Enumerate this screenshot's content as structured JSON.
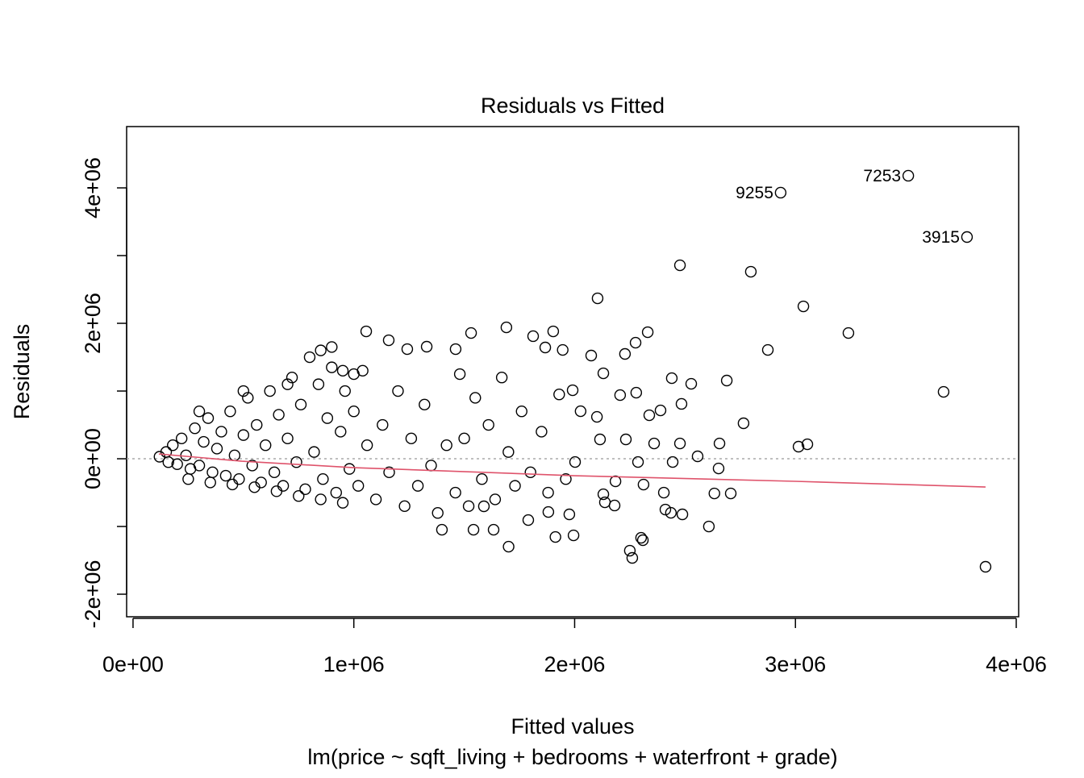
{
  "chart_data": {
    "type": "scatter",
    "title": "Residuals vs Fitted",
    "x_label": "Fitted values",
    "subtitle": "lm(price ~ sqft_living + bedrooms + waterfront + grade)",
    "y_label": "Residuals",
    "xlim": [
      -29000,
      4011000
    ],
    "ylim": [
      -2333000,
      4905000
    ],
    "xticks": [
      {
        "value": 0,
        "label": "0e+00"
      },
      {
        "value": 1000000,
        "label": "1e+06"
      },
      {
        "value": 2000000,
        "label": "2e+06"
      },
      {
        "value": 3000000,
        "label": "3e+06"
      },
      {
        "value": 4000000,
        "label": "4e+06"
      }
    ],
    "yticks": [
      {
        "value": -2000000,
        "label": "-2e+06"
      },
      {
        "value": 0,
        "label": "0e+00"
      },
      {
        "value": 2000000,
        "label": "2e+06"
      },
      {
        "value": 4000000,
        "label": "4e+06"
      }
    ],
    "y_unlabeled_ticks": [
      -1000000,
      1000000,
      3000000
    ],
    "reference_line": 0,
    "point_color": "#000000",
    "x": [
      120000,
      150000,
      160000,
      180000,
      200000,
      220000,
      240000,
      260000,
      280000,
      300000,
      320000,
      340000,
      360000,
      380000,
      400000,
      420000,
      440000,
      460000,
      480000,
      500000,
      520000,
      540000,
      560000,
      580000,
      600000,
      620000,
      640000,
      660000,
      680000,
      700000,
      720000,
      740000,
      760000,
      780000,
      800000,
      820000,
      840000,
      860000,
      880000,
      900000,
      920000,
      940000,
      960000,
      980000,
      1000000,
      1020000,
      1040000,
      1060000,
      1100000,
      1130000,
      1160000,
      1200000,
      1230000,
      1260000,
      1290000,
      1320000,
      1350000,
      1380000,
      1420000,
      1460000,
      1480000,
      1500000,
      1520000,
      1550000,
      1580000,
      1610000,
      1640000,
      1670000,
      1700000,
      1730000,
      1760000,
      1800000,
      1850000,
      1880000,
      1930000,
      1960000,
      250000,
      350000,
      450000,
      550000,
      650000,
      750000,
      850000,
      950000,
      300000,
      500000,
      700000,
      850000,
      900000,
      950000,
      1000000,
      2477000,
      2798000,
      2104000,
      3036000,
      3240000,
      2875000,
      2331000,
      3671000,
      2689000,
      2765000,
      3014000,
      3054000,
      2656000,
      2652000,
      2633000,
      2707000,
      2608000,
      3861000,
      2261000,
      2250000,
      2301000,
      2309000,
      2488000,
      2436000,
      2411000,
      2404000,
      2312000,
      2557000,
      2477000,
      2444000,
      2440000,
      2528000,
      2484000,
      2389000,
      2338000,
      2360000,
      2279000,
      2228000,
      2276000,
      2206000,
      2130000,
      2101000,
      2075000,
      2115000,
      2130000,
      2137000,
      2181000,
      2185000,
      2232000,
      2287000,
      2002000,
      2027000,
      1991000,
      1903000,
      1946000,
      1867000,
      1812000,
      1691000,
      1531000,
      1461000,
      1056000,
      1158000,
      1330000,
      1242000,
      1701000,
      1913000,
      1995000,
      1633000,
      1542000,
      1399000,
      1976000,
      1790000,
      1881000,
      1589000
    ],
    "y": [
      30000,
      100000,
      -50000,
      200000,
      -80000,
      300000,
      50000,
      -150000,
      450000,
      -100000,
      250000,
      600000,
      -200000,
      150000,
      400000,
      -250000,
      700000,
      50000,
      -300000,
      350000,
      900000,
      -100000,
      500000,
      -350000,
      200000,
      1000000,
      -200000,
      650000,
      -400000,
      300000,
      1200000,
      -50000,
      800000,
      -450000,
      1500000,
      100000,
      1100000,
      -300000,
      600000,
      1350000,
      -500000,
      400000,
      1000000,
      -150000,
      700000,
      -400000,
      1300000,
      200000,
      -600000,
      500000,
      -200000,
      1000000,
      -700000,
      300000,
      -400000,
      800000,
      -100000,
      -800000,
      200000,
      -500000,
      1250000,
      300000,
      -700000,
      900000,
      -300000,
      500000,
      -600000,
      1200000,
      100000,
      -400000,
      700000,
      -200000,
      400000,
      -500000,
      950000,
      -300000,
      -300000,
      -350000,
      -380000,
      -420000,
      -480000,
      -550000,
      -600000,
      -650000,
      700000,
      1000000,
      1100000,
      1600000,
      1650000,
      1300000,
      1250000,
      2857000,
      2762000,
      2369000,
      2250000,
      1857000,
      1607000,
      1869000,
      988000,
      1155000,
      524000,
      179000,
      214000,
      226000,
      -143000,
      -512000,
      -512000,
      -1000000,
      -1595000,
      -1464000,
      -1357000,
      -1167000,
      -1202000,
      -821000,
      -798000,
      -750000,
      -500000,
      -381000,
      36000,
      226000,
      -48000,
      1190000,
      1107000,
      810000,
      714000,
      643000,
      226000,
      976000,
      1548000,
      1714000,
      940000,
      1262000,
      619000,
      1524000,
      286000,
      -524000,
      -643000,
      -690000,
      -333000,
      286000,
      -48000,
      -48000,
      702000,
      1012000,
      1881000,
      1607000,
      1643000,
      1810000,
      1940000,
      1857000,
      1619000,
      1881000,
      1750000,
      1655000,
      1619000,
      -1298000,
      -1155000,
      -1131000,
      -1048000,
      -1048000,
      -1048000,
      -821000,
      -905000,
      -786000,
      -702000
    ],
    "labeled_points": {
      "x": [
        2933000,
        3511000,
        3777000
      ],
      "y": [
        3929000,
        4179000,
        3274000
      ],
      "labels": [
        "9255",
        "7253",
        "3915"
      ]
    },
    "smooth": {
      "color": "#DF536B",
      "x": [
        117000,
        493000,
        1000000,
        2000000,
        3000000,
        3861000
      ],
      "y": [
        71000,
        -36000,
        -131000,
        -250000,
        -333000,
        -417000
      ]
    }
  }
}
